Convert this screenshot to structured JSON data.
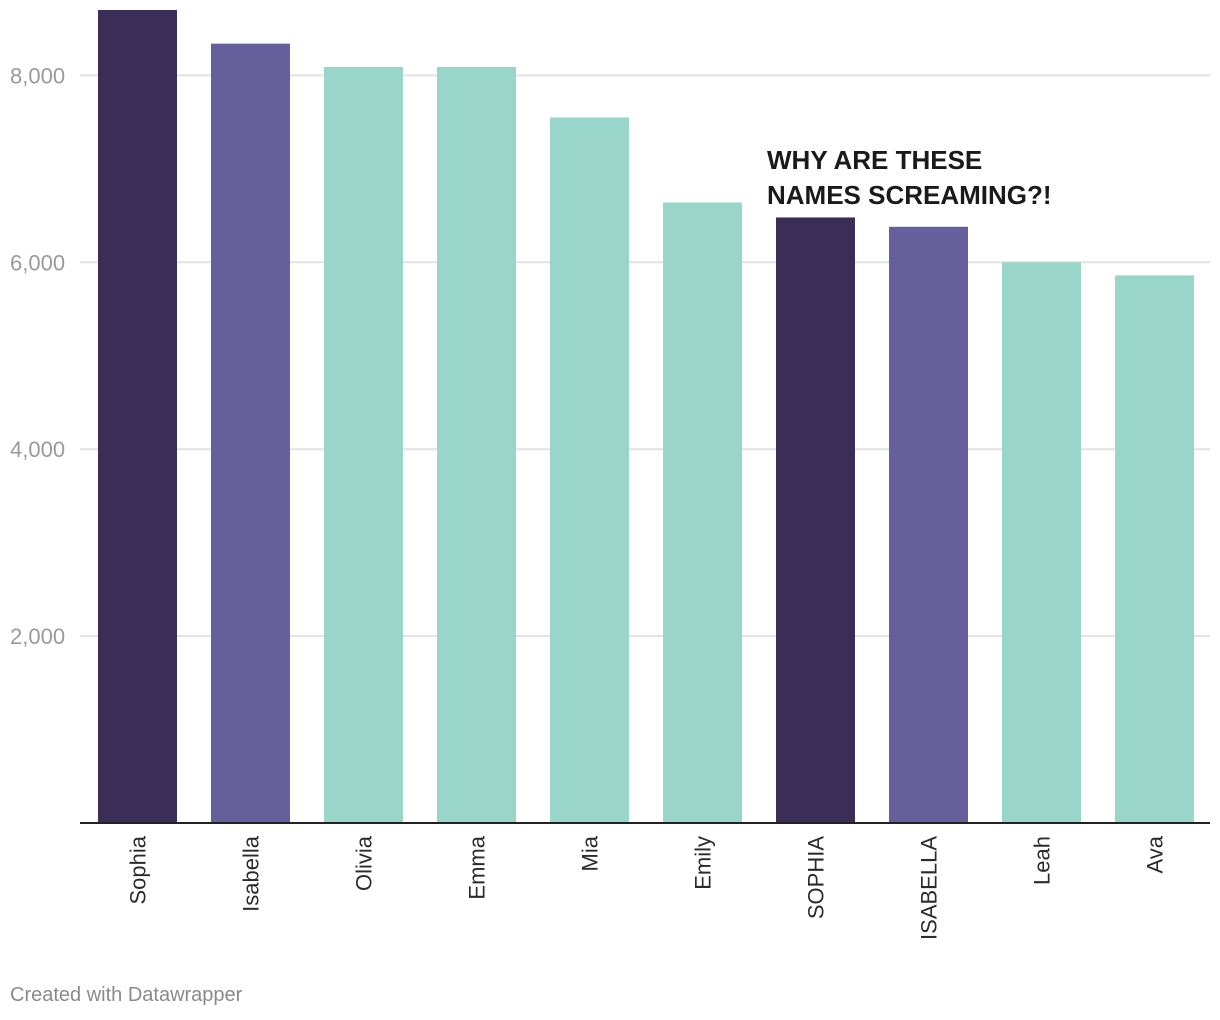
{
  "chart_data": {
    "type": "bar",
    "title": "",
    "xlabel": "",
    "ylabel": "",
    "categories": [
      "Sophia",
      "Isabella",
      "Olivia",
      "Emma",
      "Mia",
      "Emily",
      "SOPHIA",
      "ISABELLA",
      "Leah",
      "Ava"
    ],
    "values": [
      8700,
      8340,
      8090,
      8090,
      7550,
      6640,
      6480,
      6380,
      6000,
      5860
    ],
    "bar_colors": [
      "#3a2d56",
      "#655f9c",
      "#9ad5ca",
      "#9ad5ca",
      "#9ad5ca",
      "#9ad5ca",
      "#3a2d56",
      "#655f9c",
      "#9ad5ca",
      "#9ad5ca"
    ],
    "ylim": [
      0,
      8700
    ],
    "yticks": [
      2000,
      4000,
      6000,
      8000
    ],
    "ytick_labels": [
      "2,000",
      "4,000",
      "6,000",
      "8,000"
    ],
    "grid": true,
    "annotation": {
      "lines": [
        "WHY ARE THESE",
        "NAMES SCREAMING?!"
      ],
      "anchor_category": "SOPHIA"
    }
  },
  "colors": {
    "grid": "#e2e2e2",
    "axis": "#222222"
  },
  "footer": {
    "credit": "Created with Datawrapper"
  }
}
